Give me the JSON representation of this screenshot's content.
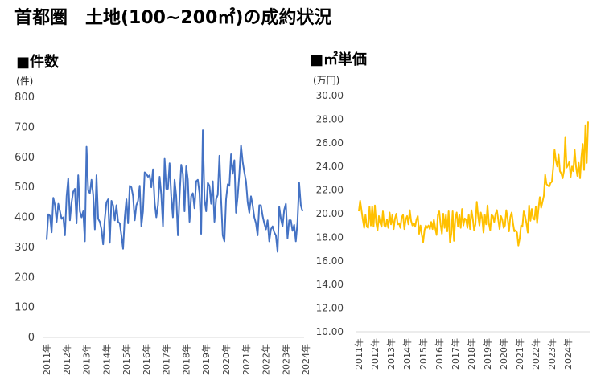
{
  "title": "首都圏　土地(100~200㎡)の成約状況",
  "chart_data": [
    {
      "type": "line",
      "title": "■件数",
      "unit": "(件)",
      "color": "#4472C4",
      "ylim": [
        0,
        800
      ],
      "yticks": [
        0,
        100,
        200,
        300,
        400,
        500,
        600,
        700,
        800
      ],
      "ytick_labels": [
        "0",
        "100",
        "200",
        "300",
        "400",
        "500",
        "600",
        "700",
        "800"
      ],
      "xtick_labels": [
        "2011年",
        "2012年",
        "2013年",
        "2014年",
        "2015年",
        "2016年",
        "2017年",
        "2018年",
        "2019年",
        "2020年",
        "2021年",
        "2022年",
        "2023年",
        "2024年"
      ],
      "start": "2011-01",
      "series": [
        {
          "values": [
            325,
            410,
            405,
            350,
            465,
            440,
            385,
            445,
            420,
            395,
            400,
            340,
            470,
            530,
            390,
            450,
            485,
            495,
            380,
            540,
            420,
            400,
            420,
            320,
            635,
            490,
            480,
            525,
            475,
            360,
            540,
            395,
            385,
            360,
            310,
            395,
            450,
            460,
            315,
            455,
            440,
            390,
            440,
            385,
            380,
            340,
            295,
            400,
            460,
            380,
            505,
            500,
            470,
            390,
            440,
            455,
            505,
            370,
            420,
            550,
            545,
            535,
            540,
            500,
            560,
            450,
            400,
            440,
            535,
            475,
            370,
            595,
            495,
            495,
            580,
            470,
            400,
            525,
            470,
            340,
            470,
            575,
            545,
            420,
            570,
            525,
            385,
            470,
            480,
            430,
            520,
            525,
            480,
            345,
            690,
            460,
            420,
            515,
            505,
            445,
            520,
            385,
            460,
            475,
            605,
            460,
            340,
            320,
            460,
            510,
            505,
            610,
            545,
            590,
            415,
            470,
            545,
            640,
            585,
            550,
            520,
            450,
            415,
            470,
            440,
            400,
            380,
            340,
            440,
            440,
            405,
            380,
            360,
            390,
            320,
            360,
            370,
            350,
            340,
            285,
            435,
            395,
            370,
            425,
            445,
            330,
            390,
            390,
            355,
            375,
            320,
            385,
            515,
            440,
            420
          ]
        }
      ]
    },
    {
      "type": "line",
      "title": "■㎡単価",
      "unit": "(万円)",
      "color": "#FFC000",
      "ylim": [
        10,
        30
      ],
      "yticks": [
        10,
        12,
        14,
        16,
        18,
        20,
        22,
        24,
        26,
        28,
        30
      ],
      "ytick_labels": [
        "10.00",
        "12.00",
        "14.00",
        "16.00",
        "18.00",
        "20.00",
        "22.00",
        "24.00",
        "26.00",
        "28.00",
        "30.00"
      ],
      "xtick_labels": [
        "2011年",
        "2012年",
        "2013年",
        "2014年",
        "2015年",
        "2016年",
        "2017年",
        "2018年",
        "2019年",
        "2020年",
        "2021年",
        "2022年",
        "2023年",
        "2024年"
      ],
      "start": "2011-01",
      "series": [
        {
          "values": [
            20.2,
            21.1,
            20.3,
            19.5,
            18.8,
            19.9,
            18.9,
            18.8,
            20.6,
            19.0,
            20.6,
            18.9,
            20.7,
            19.2,
            18.6,
            19.8,
            19.2,
            18.9,
            20.2,
            19.0,
            18.9,
            19.5,
            18.8,
            20.1,
            19.1,
            19.9,
            18.7,
            19.6,
            20.0,
            19.1,
            19.2,
            18.8,
            19.7,
            19.9,
            18.7,
            19.5,
            19.8,
            19.1,
            20.3,
            19.4,
            19.0,
            19.2,
            18.9,
            19.5,
            19.8,
            18.3,
            19.0,
            18.2,
            17.6,
            18.6,
            19.0,
            18.8,
            19.0,
            18.7,
            19.3,
            18.7,
            19.5,
            18.8,
            18.2,
            19.9,
            20.2,
            19.1,
            18.3,
            20.0,
            18.8,
            19.9,
            18.5,
            20.2,
            17.6,
            18.3,
            20.2,
            17.7,
            19.6,
            20.1,
            18.9,
            19.9,
            18.8,
            20.4,
            19.0,
            19.6,
            19.5,
            18.8,
            19.9,
            18.7,
            20.3,
            19.6,
            18.6,
            19.1,
            21.0,
            19.8,
            19.0,
            20.1,
            19.6,
            18.4,
            19.9,
            19.1,
            20.7,
            19.2,
            18.6,
            19.9,
            19.8,
            19.3,
            20.0,
            20.3,
            19.5,
            18.7,
            19.8,
            19.5,
            18.8,
            19.0,
            20.3,
            19.6,
            18.5,
            19.7,
            20.1,
            19.2,
            18.5,
            18.6,
            18.4,
            17.3,
            17.9,
            19.0,
            18.9,
            20.2,
            19.8,
            19.2,
            18.4,
            20.7,
            19.4,
            20.4,
            19.6,
            19.5,
            20.6,
            19.2,
            20.4,
            21.4,
            20.5,
            21.0,
            21.5,
            23.3,
            22.5,
            22.4,
            22.3,
            22.6,
            22.7,
            23.9,
            25.4,
            24.5,
            24.0,
            25.0,
            23.6,
            23.4,
            23.0,
            23.6,
            26.5,
            23.9,
            24.1,
            24.4,
            23.1,
            24.0,
            23.6,
            25.4,
            24.0,
            23.2,
            24.3,
            23.0,
            24.8,
            25.9,
            23.7,
            27.5,
            24.3,
            27.8
          ]
        }
      ]
    }
  ]
}
